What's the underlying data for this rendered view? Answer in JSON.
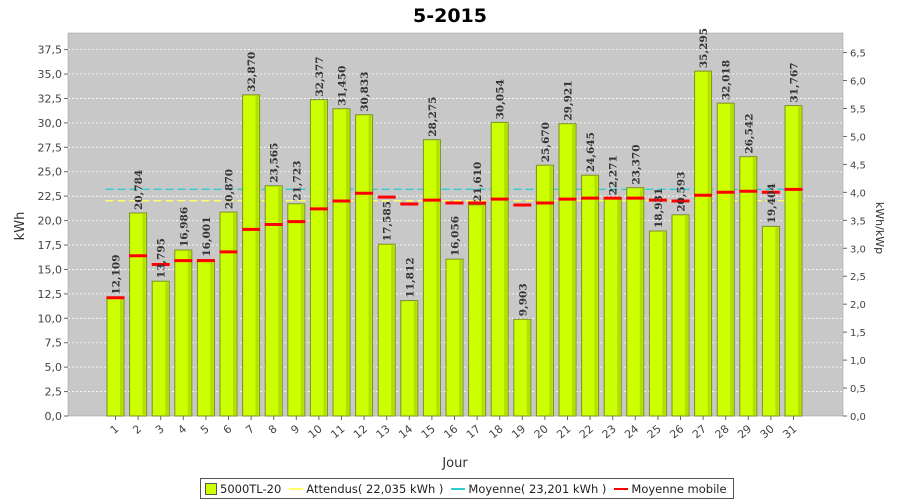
{
  "chart_data": {
    "type": "bar",
    "title": "5-2015",
    "xlabel": "Jour",
    "ylabel": "kWh",
    "ylabel_right": "kWh/kWp",
    "ylim": [
      0,
      39.2
    ],
    "y2lim": [
      0,
      6.85
    ],
    "yticks": [
      "0,0",
      "2,5",
      "5,0",
      "7,5",
      "10,0",
      "12,5",
      "15,0",
      "17,5",
      "20,0",
      "22,5",
      "25,0",
      "27,5",
      "30,0",
      "32,5",
      "35,0",
      "37,5"
    ],
    "y2ticks": [
      "0,0",
      "0,5",
      "1,0",
      "1,5",
      "2,0",
      "2,5",
      "3,0",
      "3,5",
      "4,0",
      "4,5",
      "5,0",
      "5,5",
      "6,0",
      "6,5"
    ],
    "categories": [
      "1",
      "2",
      "3",
      "4",
      "5",
      "6",
      "7",
      "8",
      "9",
      "10",
      "11",
      "12",
      "13",
      "14",
      "15",
      "16",
      "17",
      "18",
      "19",
      "20",
      "21",
      "22",
      "23",
      "24",
      "25",
      "26",
      "27",
      "28",
      "29",
      "30",
      "31"
    ],
    "series": [
      {
        "name": "5000TL-20",
        "color": "#ccff00",
        "values": [
          12.109,
          20.784,
          13.795,
          16.986,
          16.001,
          20.87,
          32.87,
          23.565,
          21.723,
          32.377,
          31.45,
          30.833,
          17.585,
          11.812,
          28.275,
          16.056,
          21.61,
          30.054,
          9.903,
          25.67,
          29.921,
          24.645,
          22.271,
          23.37,
          18.931,
          20.593,
          35.295,
          32.018,
          26.542,
          19.404,
          31.767
        ],
        "labels": [
          "12,109",
          "20,784",
          "13,795",
          "16,986",
          "16,001",
          "20,870",
          "32,870",
          "23,565",
          "21,723",
          "32,377",
          "31,450",
          "30,833",
          "17,585",
          "11,812",
          "28,275",
          "16,056",
          "21,610",
          "30,054",
          "9,903",
          "25,670",
          "29,921",
          "24,645",
          "22,271",
          "23,370",
          "18,931",
          "20,593",
          "35,295",
          "32,018",
          "26,542",
          "19,404",
          "31,767"
        ]
      },
      {
        "name": "Moyenne mobile",
        "color": "#ff0000",
        "values": [
          12.1,
          16.4,
          15.5,
          15.9,
          15.9,
          16.8,
          19.1,
          19.6,
          19.9,
          21.2,
          22.0,
          22.8,
          22.4,
          21.7,
          22.1,
          21.8,
          21.8,
          22.2,
          21.6,
          21.8,
          22.2,
          22.3,
          22.3,
          22.3,
          22.1,
          22.0,
          22.6,
          22.9,
          23.0,
          22.9,
          23.2
        ]
      }
    ],
    "reference_lines": [
      {
        "name": "Attendus",
        "value": 22.035,
        "color": "#ffff66"
      },
      {
        "name": "Moyenne",
        "value": 23.201,
        "color": "#33cccc"
      }
    ],
    "legend": [
      {
        "label": "5000TL-20",
        "kind": "bar",
        "color": "#ccff00"
      },
      {
        "label": "Attendus( 22,035 kWh )",
        "kind": "line",
        "color": "#ffff66"
      },
      {
        "label": "Moyenne( 23,201 kWh )",
        "kind": "line",
        "color": "#33cccc"
      },
      {
        "label": "Moyenne mobile",
        "kind": "line",
        "color": "#ff0000"
      }
    ],
    "legend_position": "bottom",
    "grid": true,
    "plot_background": "#c8c8c8"
  }
}
